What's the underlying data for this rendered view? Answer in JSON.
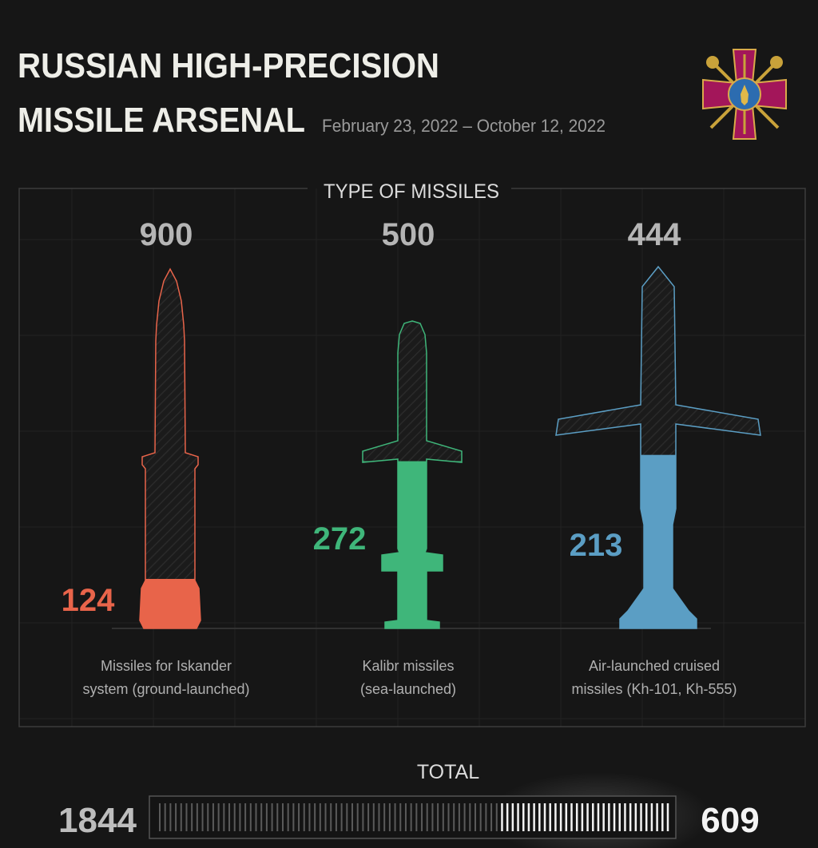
{
  "header": {
    "title_line1": "RUSSIAN HIGH-PRECISION",
    "title_line2": "MISSILE ARSENAL",
    "date_range": "February 23, 2022 – October 12, 2022",
    "emblem": "armed-forces-of-ukraine-emblem"
  },
  "colors": {
    "background": "#161616",
    "iskander": "#e8644a",
    "kalibr": "#3fb67a",
    "air_launched": "#5b9ec4",
    "text": "#e8e8e8",
    "muted": "#b5b5b5"
  },
  "chart_data": {
    "type": "bar",
    "title": "TYPE OF MISSILES",
    "categories": [
      {
        "label_line1": "Missiles for Iskander",
        "label_line2": "system (ground-launched)",
        "total": 900,
        "remaining": 124,
        "color": "#e8644a",
        "icon": "ballistic-missile-icon"
      },
      {
        "label_line1": "Kalibr missiles",
        "label_line2": "(sea-launched)",
        "total": 500,
        "remaining": 272,
        "color": "#3fb67a",
        "icon": "cruise-missile-icon"
      },
      {
        "label_line1": "Air-launched cruised",
        "label_line2": "missiles (Kh-101, Kh-555)",
        "total": 444,
        "remaining": 213,
        "color": "#5b9ec4",
        "icon": "air-launched-missile-icon"
      }
    ],
    "summary": {
      "label": "TOTAL",
      "total": 1844,
      "remaining": 609
    }
  }
}
